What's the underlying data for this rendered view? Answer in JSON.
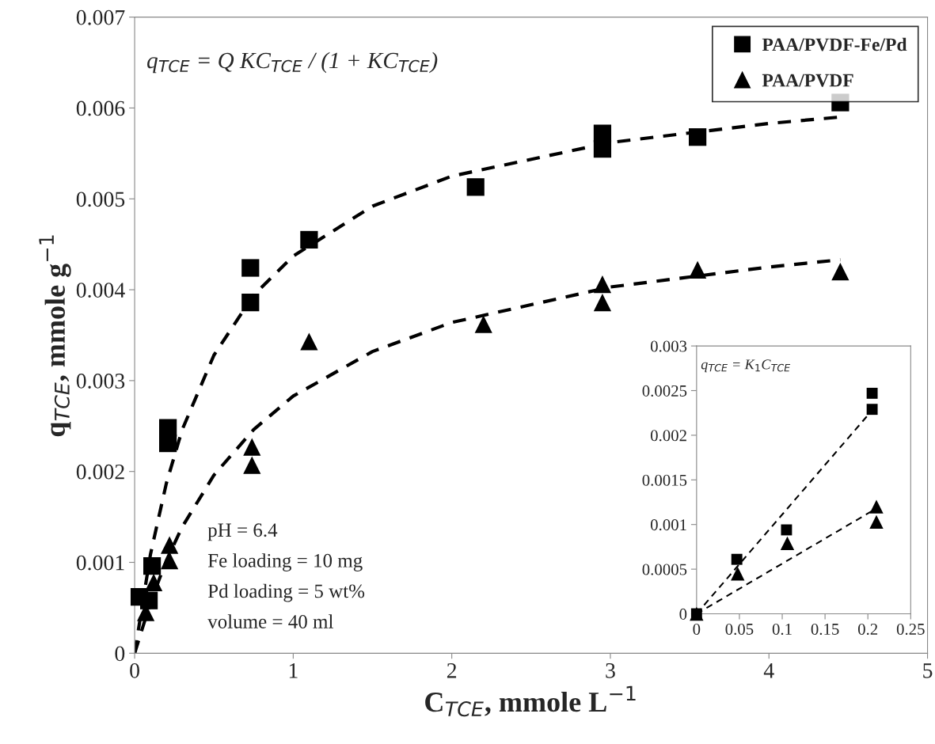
{
  "chart_data": [
    {
      "type": "scatter",
      "xlabel": "C$_{TCE}$, mmole L$^{−1}$",
      "ylabel": "q$_{TCE}$, mmole g$^{−1}$",
      "xlim": [
        0,
        5
      ],
      "ylim": [
        0,
        0.007
      ],
      "xticks": [
        0,
        1,
        2,
        3,
        4,
        5
      ],
      "yticks": [
        0,
        0.001,
        0.002,
        0.003,
        0.004,
        0.005,
        0.006,
        0.007
      ],
      "grid": false,
      "legend": "top right",
      "annotations": [
        "q$_{TCE}$ = Q KC$_{TCE}$ / (1 + KC$_{TCE}$)",
        "pH = 6.4",
        "Fe loading = 10 mg",
        "Pd loading = 5 wt%",
        "volume = 40 ml"
      ],
      "series": [
        {
          "name": "PAA/PVDF-Fe/Pd",
          "marker": "square",
          "color": "#000000",
          "x": [
            0.03,
            0.09,
            0.11,
            0.21,
            0.21,
            0.73,
            0.73,
            1.1,
            2.15,
            2.95,
            2.95,
            3.55,
            4.45
          ],
          "values": [
            0.00062,
            0.00058,
            0.00096,
            0.00248,
            0.00231,
            0.00424,
            0.00386,
            0.00455,
            0.00513,
            0.00572,
            0.00555,
            0.00568,
            0.00606
          ]
        },
        {
          "name": "PAA/PVDF",
          "marker": "triangle",
          "color": "#000000",
          "x": [
            0.07,
            0.12,
            0.22,
            0.22,
            0.74,
            0.74,
            1.1,
            2.2,
            2.95,
            2.95,
            3.55,
            4.45
          ],
          "values": [
            0.00045,
            0.00078,
            0.00119,
            0.00102,
            0.00227,
            0.00207,
            0.00343,
            0.00362,
            0.00406,
            0.00386,
            0.00422,
            0.0042
          ]
        },
        {
          "type": "line",
          "line_style": "dashed",
          "marker": "none",
          "color": "#000000",
          "x": [
            0,
            0.1,
            0.2,
            0.3,
            0.5,
            0.75,
            1,
            1.5,
            2,
            3,
            4,
            4.45
          ],
          "values": [
            0,
            0.00109,
            0.00187,
            0.00246,
            0.00328,
            0.00394,
            0.00437,
            0.00492,
            0.00525,
            0.00562,
            0.00583,
            0.0059
          ]
        },
        {
          "type": "line",
          "line_style": "dashed",
          "marker": "none",
          "color": "#000000",
          "x": [
            0,
            0.1,
            0.2,
            0.3,
            0.5,
            0.75,
            1,
            1.5,
            2,
            3,
            4,
            4.45
          ],
          "values": [
            0,
            0.00056,
            0.00102,
            0.00139,
            0.00196,
            0.00246,
            0.00283,
            0.00332,
            0.00364,
            0.00403,
            0.00425,
            0.00433
          ]
        }
      ]
    },
    {
      "type": "scatter",
      "xlim": [
        0,
        0.25
      ],
      "ylim": [
        0,
        0.003
      ],
      "xticks": [
        0,
        0.05,
        0.1,
        0.15,
        0.2,
        0.25
      ],
      "yticks": [
        0,
        0.0005,
        0.001,
        0.0015,
        0.002,
        0.0025,
        0.003
      ],
      "grid": false,
      "legend": false,
      "annotations": [
        "q$_{TCE}$ = K$_{1}$C$_{TCE}$"
      ],
      "series": [
        {
          "marker": "square",
          "color": "#000000",
          "x": [
            0,
            0.047,
            0.105,
            0.205,
            0.205
          ],
          "values": [
            0,
            0.00061,
            0.00094,
            0.00247,
            0.00229
          ]
        },
        {
          "marker": "triangle",
          "color": "#000000",
          "x": [
            0,
            0.048,
            0.106,
            0.21,
            0.21
          ],
          "values": [
            0,
            0.00045,
            0.00079,
            0.0012,
            0.00103
          ]
        },
        {
          "type": "line",
          "line_style": "dashed",
          "marker": "none",
          "color": "#000000",
          "x": [
            0,
            0.205
          ],
          "values": [
            0,
            0.00228
          ]
        },
        {
          "type": "line",
          "line_style": "dashed",
          "marker": "none",
          "color": "#000000",
          "x": [
            0,
            0.21
          ],
          "values": [
            0,
            0.00118
          ]
        }
      ]
    }
  ]
}
